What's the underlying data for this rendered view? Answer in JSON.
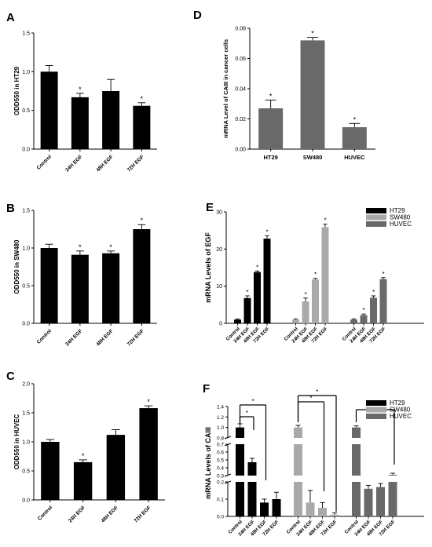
{
  "chart_data": [
    {
      "panel": "A",
      "type": "bar",
      "ylabel": "ODD550 in HT29",
      "categories": [
        "Control",
        "24H EGF",
        "48H EGF",
        "72H EGF"
      ],
      "values": [
        1.0,
        0.67,
        0.75,
        0.56
      ],
      "errors": [
        0.08,
        0.05,
        0.15,
        0.04
      ],
      "significance": [
        "",
        "*",
        "",
        "*"
      ],
      "ylim": [
        0,
        1.5
      ],
      "yticks": [
        "0.0",
        "0.5",
        "1.0",
        "1.5"
      ],
      "color": "#000000"
    },
    {
      "panel": "B",
      "type": "bar",
      "ylabel": "ODD550 in SW480",
      "categories": [
        "Control",
        "24H EGF",
        "48H EGF",
        "72H EGF"
      ],
      "values": [
        1.0,
        0.91,
        0.93,
        1.25
      ],
      "errors": [
        0.05,
        0.05,
        0.03,
        0.06
      ],
      "significance": [
        "",
        "*",
        "*",
        "*"
      ],
      "ylim": [
        0,
        1.5
      ],
      "yticks": [
        "0.0",
        "0.5",
        "1.0",
        "1.5"
      ],
      "color": "#000000"
    },
    {
      "panel": "C",
      "type": "bar",
      "ylabel": "ODD550 in HUVEC",
      "categories": [
        "Control",
        "24H EGF",
        "48H EGF",
        "72H EGF"
      ],
      "values": [
        1.0,
        0.65,
        1.12,
        1.58
      ],
      "errors": [
        0.04,
        0.04,
        0.09,
        0.04
      ],
      "significance": [
        "",
        "*",
        "",
        "*"
      ],
      "ylim": [
        0,
        2.0
      ],
      "yticks": [
        "0.0",
        "0.5",
        "1.0",
        "1.5",
        "2.0"
      ],
      "color": "#000000"
    },
    {
      "panel": "D",
      "type": "bar",
      "ylabel": "mRNA Level of CAIII in cancer cells",
      "categories": [
        "HT29",
        "SW480",
        "HUVEC"
      ],
      "values": [
        0.027,
        0.072,
        0.0145
      ],
      "errors": [
        0.0055,
        0.002,
        0.0025
      ],
      "significance": [
        "*",
        "*",
        "*"
      ],
      "ylim": [
        0,
        0.08
      ],
      "yticks": [
        "0.00",
        "0.02",
        "0.04",
        "0.06",
        "0.08"
      ],
      "color": "#696969"
    },
    {
      "panel": "E",
      "type": "bar",
      "ylabel": "mRNA Levels of EGF",
      "categories": [
        "Control",
        "24H EGF",
        "48H EGF",
        "72H EGF"
      ],
      "series": [
        {
          "name": "HT29",
          "color": "#000000",
          "values": [
            1.0,
            6.8,
            13.8,
            22.8
          ],
          "errors": [
            0.2,
            0.6,
            0.3,
            0.8
          ],
          "significance": [
            "",
            "*",
            "*",
            "*"
          ]
        },
        {
          "name": "SW480",
          "color": "#a9a9a9",
          "values": [
            1.0,
            5.9,
            11.8,
            25.9
          ],
          "errors": [
            0.2,
            0.9,
            0.3,
            0.8
          ],
          "significance": [
            "",
            "*",
            "*",
            "*"
          ]
        },
        {
          "name": "HUVEC",
          "color": "#696969",
          "values": [
            1.0,
            2.2,
            6.9,
            11.9
          ],
          "errors": [
            0.2,
            0.3,
            0.5,
            0.4
          ],
          "significance": [
            "",
            "*",
            "*",
            "*"
          ]
        }
      ],
      "ylim": [
        0,
        30
      ],
      "yticks": [
        "0",
        "10",
        "20",
        "30"
      ],
      "legend": "top-right"
    },
    {
      "panel": "F",
      "type": "bar",
      "ylabel": "mRNA Levels of CAIII",
      "categories": [
        "Control",
        "24H EGF",
        "48H EGF",
        "72H EGF"
      ],
      "broken_axis": true,
      "series": [
        {
          "name": "HT29",
          "color": "#000000",
          "values": [
            1.0,
            0.47,
            0.08,
            0.1
          ],
          "errors": [
            0.07,
            0.05,
            0.02,
            0.04
          ]
        },
        {
          "name": "SW480",
          "color": "#a9a9a9",
          "values": [
            1.0,
            0.08,
            0.05,
            0.01
          ],
          "errors": [
            0.04,
            0.07,
            0.03,
            0.01
          ]
        },
        {
          "name": "HUVEC",
          "color": "#696969",
          "values": [
            1.0,
            0.16,
            0.17,
            0.31
          ],
          "errors": [
            0.03,
            0.02,
            0.02,
            0.02
          ]
        }
      ],
      "significance_brackets": [
        {
          "series": "HT29",
          "from": "Control",
          "to": "24H EGF",
          "label": "*"
        },
        {
          "series": "HT29",
          "from": "Control",
          "to": "48H EGF",
          "label": "*"
        },
        {
          "series": "SW480",
          "from": "Control",
          "to": "48H EGF",
          "label": "*"
        },
        {
          "series": "SW480",
          "from": "Control",
          "to": "72H EGF",
          "label": "*"
        },
        {
          "series": "HUVEC",
          "from": "Control",
          "to": "72H EGF",
          "label": "*"
        }
      ],
      "yticks_lower": [
        "0.0",
        "0.1",
        "0.2"
      ],
      "yticks_middle": [
        "0.3",
        "0.4",
        "0.5",
        "0.6",
        "0.7"
      ],
      "yticks_upper": [
        "0.8",
        "1.0",
        "1.2",
        "1.4"
      ],
      "legend": "top-right"
    }
  ]
}
